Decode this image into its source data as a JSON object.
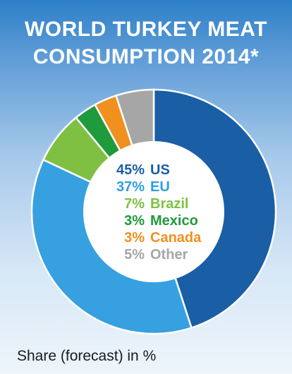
{
  "chart_data": {
    "type": "pie",
    "variant": "donut",
    "title_lines": [
      "WORLD TURKEY MEAT",
      "CONSUMPTION 2014*"
    ],
    "slices": [
      {
        "label": "US",
        "value": 45,
        "value_label": "45%",
        "color": "#1a5ea6",
        "label_color": "#1a5ea6"
      },
      {
        "label": "EU",
        "value": 37,
        "value_label": "37%",
        "color": "#36a0e0",
        "label_color": "#2f9ee0"
      },
      {
        "label": "Brazil",
        "value": 7,
        "value_label": "7%",
        "color": "#7fc042",
        "label_color": "#7fc042"
      },
      {
        "label": "Mexico",
        "value": 3,
        "value_label": "3%",
        "color": "#1f9a3c",
        "label_color": "#1f9a3c"
      },
      {
        "label": "Canada",
        "value": 3,
        "value_label": "3%",
        "color": "#f0901e",
        "label_color": "#f0901e"
      },
      {
        "label": "Other",
        "value": 5,
        "value_label": "5%",
        "color": "#a6a6a6",
        "label_color": "#a6a6a6"
      }
    ],
    "footnote": "Share (forecast) in %"
  }
}
